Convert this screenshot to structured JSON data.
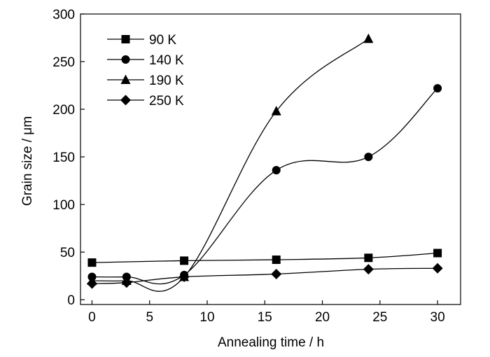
{
  "chart_data": {
    "type": "scatter",
    "xlabel": "Annealing time / h",
    "ylabel": "Grain size / μm",
    "xlim": [
      -1,
      32
    ],
    "ylim": [
      -5,
      300
    ],
    "xticks": [
      0,
      5,
      10,
      15,
      20,
      25,
      30
    ],
    "yticks": [
      0,
      50,
      100,
      150,
      200,
      250,
      300
    ],
    "grid": false,
    "legend_position": "top-left",
    "series": [
      {
        "name": "90 K",
        "marker": "square",
        "x": [
          0,
          8,
          16,
          24,
          30
        ],
        "y": [
          39,
          41,
          42,
          44,
          49
        ]
      },
      {
        "name": "140 K",
        "marker": "circle",
        "x": [
          0,
          3,
          8,
          16,
          24,
          30
        ],
        "y": [
          24,
          24,
          26,
          136,
          150,
          222
        ]
      },
      {
        "name": "190 K",
        "marker": "triangle",
        "x": [
          0,
          3,
          8,
          16,
          24
        ],
        "y": [
          20,
          20,
          24,
          198,
          274
        ]
      },
      {
        "name": "250 K",
        "marker": "diamond",
        "x": [
          0,
          3,
          8,
          16,
          24,
          30
        ],
        "y": [
          17,
          18,
          24,
          27,
          32,
          33
        ]
      }
    ]
  }
}
